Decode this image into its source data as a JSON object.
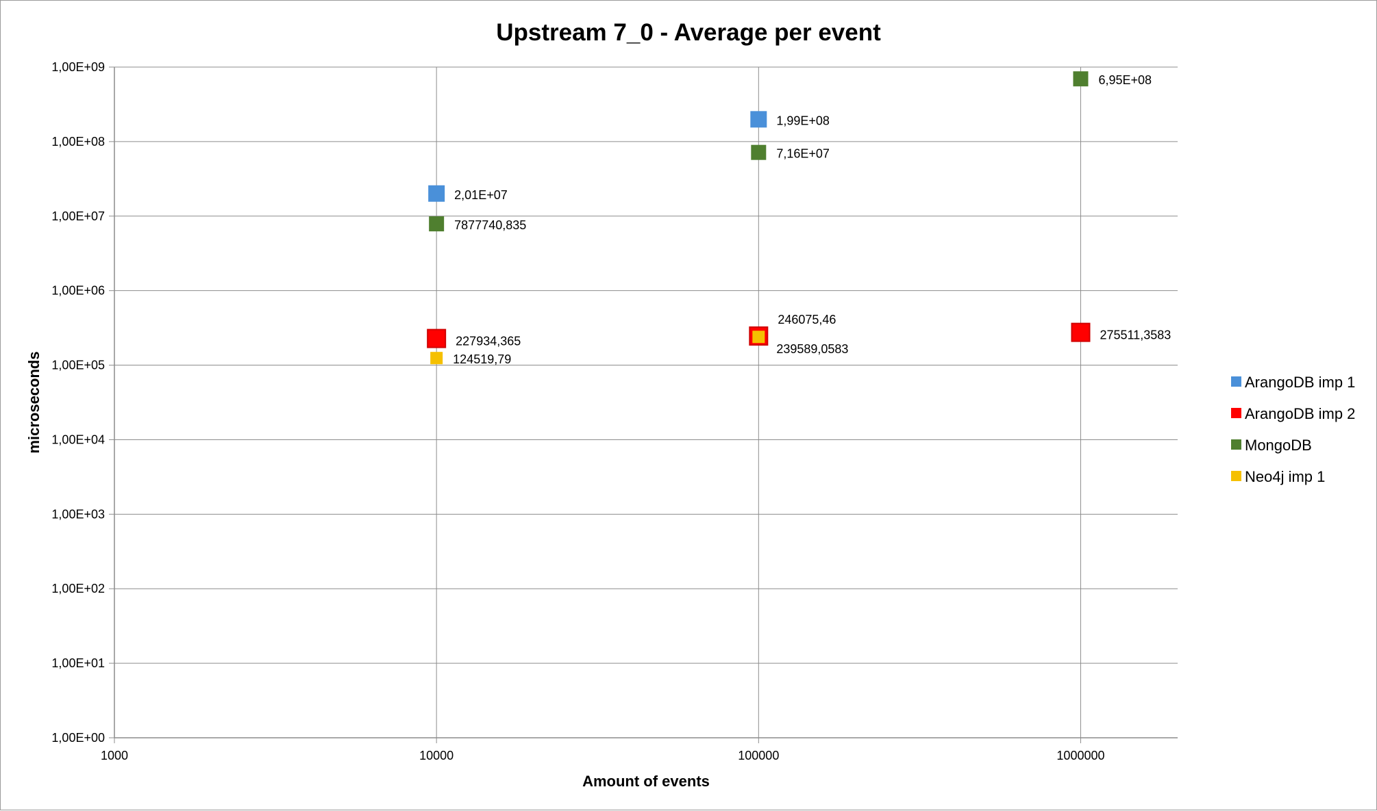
{
  "chart_data": {
    "type": "scatter",
    "title": "Upstream 7_0 - Average per event",
    "xlabel": "Amount of events",
    "ylabel": "microseconds",
    "x_scale": "log",
    "y_scale": "log",
    "xlim": [
      1000,
      1000000
    ],
    "ylim": [
      1,
      1000000000
    ],
    "x_tick_labels": [
      "1000",
      "10000",
      "100000",
      "1000000"
    ],
    "y_tick_labels": [
      "1,00E+00",
      "1,00E+01",
      "1,00E+02",
      "1,00E+03",
      "1,00E+04",
      "1,00E+05",
      "1,00E+06",
      "1,00E+07",
      "1,00E+08",
      "1,00E+09"
    ],
    "grid": true,
    "legend_position": "right",
    "series": [
      {
        "name": "ArangoDB imp 1",
        "color": "#4a90d9",
        "points": [
          {
            "x": 10000,
            "y": 20100000,
            "label": "2,01E+07"
          },
          {
            "x": 100000,
            "y": 199000000,
            "label": "1,99E+08"
          }
        ]
      },
      {
        "name": "ArangoDB imp 2",
        "color": "#ff0000",
        "points": [
          {
            "x": 10000,
            "y": 227934.365,
            "label": "227934,365"
          },
          {
            "x": 100000,
            "y": 246075.46,
            "label": "246075,46"
          },
          {
            "x": 1000000,
            "y": 275511.3583,
            "label": "275511,3583"
          }
        ]
      },
      {
        "name": "MongoDB",
        "color": "#4f7f2f",
        "points": [
          {
            "x": 10000,
            "y": 7877740.835,
            "label": "7877740,835"
          },
          {
            "x": 100000,
            "y": 71600000,
            "label": "7,16E+07"
          },
          {
            "x": 1000000,
            "y": 695000000,
            "label": "6,95E+08"
          }
        ]
      },
      {
        "name": "Neo4j imp 1",
        "color": "#f5c000",
        "points": [
          {
            "x": 10000,
            "y": 124519.79,
            "label": "124519,79"
          },
          {
            "x": 100000,
            "y": 239589.0583,
            "label": "239589,0583"
          }
        ]
      }
    ]
  }
}
